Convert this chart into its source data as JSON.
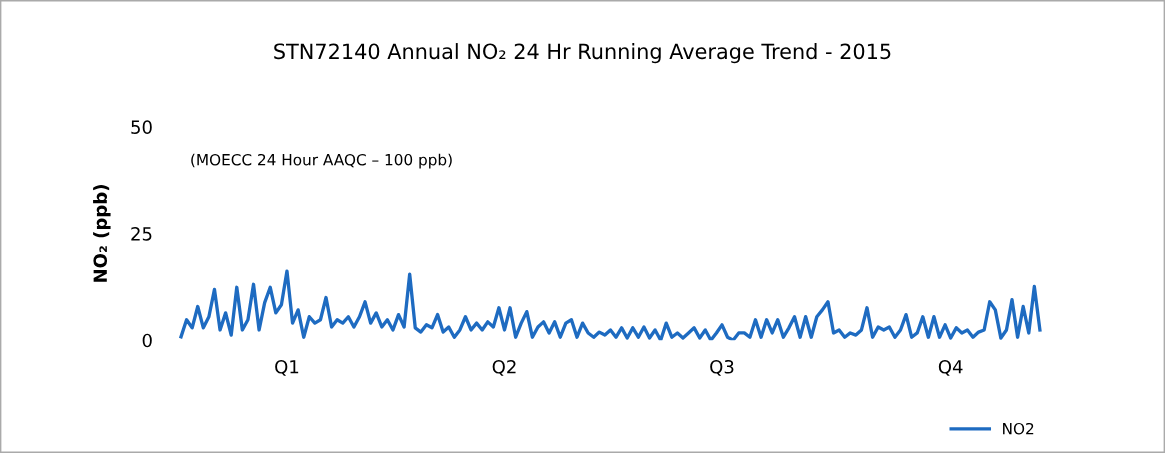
{
  "chart_data": {
    "type": "line",
    "title": "STN72140 Annual NO₂ 24 Hr Running Average Trend - 2015",
    "ylabel": "NO₂ (ppb)",
    "annotations": [
      "(MOECC 24 Hour AAQC – 100 ppb)"
    ],
    "categories": [
      null,
      null,
      null,
      null,
      null,
      null,
      null,
      null,
      null,
      null,
      null,
      null,
      null,
      null,
      null,
      null,
      null,
      null,
      null,
      "Q1",
      null,
      null,
      null,
      null,
      null,
      null,
      null,
      null,
      null,
      null,
      null,
      null,
      null,
      null,
      null,
      null,
      null,
      null,
      null,
      null,
      null,
      null,
      null,
      null,
      null,
      null,
      null,
      null,
      null,
      null,
      null,
      null,
      null,
      null,
      null,
      null,
      null,
      null,
      "Q2",
      null,
      null,
      null,
      null,
      null,
      null,
      null,
      null,
      null,
      null,
      null,
      null,
      null,
      null,
      null,
      null,
      null,
      null,
      null,
      null,
      null,
      null,
      null,
      null,
      null,
      null,
      null,
      null,
      null,
      null,
      null,
      null,
      null,
      null,
      null,
      null,
      null,
      null,
      "Q3",
      null,
      null,
      null,
      null,
      null,
      null,
      null,
      null,
      null,
      null,
      null,
      null,
      null,
      null,
      null,
      null,
      null,
      null,
      null,
      null,
      null,
      null,
      null,
      null,
      null,
      null,
      null,
      null,
      null,
      null,
      null,
      null,
      null,
      null,
      null,
      null,
      null,
      null,
      null,
      null,
      "Q4",
      null,
      null,
      null,
      null,
      null,
      null,
      null,
      null,
      null,
      null,
      null,
      null,
      null,
      null,
      null,
      null
    ],
    "series": [
      {
        "name": "NO2",
        "color": "#1e6bc1",
        "values": [
          0.8,
          4.8,
          2.9,
          7.9,
          2.9,
          5.5,
          11.9,
          2.4,
          6.4,
          1.2,
          12.4,
          2.4,
          4.8,
          13.1,
          2.4,
          8.8,
          12.4,
          6.4,
          8.3,
          16.2,
          4.0,
          7.1,
          0.7,
          5.5,
          4.0,
          4.8,
          10.0,
          3.1,
          4.8,
          4.0,
          5.5,
          3.1,
          5.5,
          9.0,
          4.0,
          6.4,
          3.1,
          4.8,
          2.4,
          6.0,
          3.1,
          15.5,
          2.9,
          1.9,
          3.6,
          2.9,
          6.0,
          1.9,
          3.1,
          0.7,
          2.4,
          5.5,
          2.4,
          4.0,
          2.4,
          4.3,
          3.1,
          7.6,
          2.4,
          7.6,
          0.7,
          4.0,
          6.7,
          0.7,
          3.1,
          4.3,
          1.7,
          4.3,
          0.7,
          4.0,
          4.8,
          0.7,
          4.0,
          1.7,
          0.7,
          1.9,
          1.2,
          2.4,
          0.7,
          2.9,
          0.5,
          2.9,
          0.7,
          3.1,
          0.5,
          2.4,
          0,
          4.0,
          0.7,
          1.7,
          0.5,
          1.7,
          2.9,
          0.5,
          2.4,
          0,
          1.7,
          3.6,
          0.7,
          0,
          1.7,
          1.7,
          0.7,
          4.8,
          0.7,
          4.8,
          1.7,
          4.8,
          0.7,
          2.9,
          5.5,
          0.7,
          5.5,
          0.7,
          5.5,
          7.1,
          9.0,
          1.7,
          2.4,
          0.7,
          1.7,
          1.2,
          2.4,
          7.6,
          0.7,
          3.1,
          2.4,
          3.1,
          0.7,
          2.4,
          6.0,
          0.7,
          1.7,
          5.5,
          0.7,
          5.5,
          0.7,
          3.6,
          0.5,
          2.9,
          1.7,
          2.4,
          0.7,
          1.9,
          2.4,
          9.0,
          7.1,
          0.5,
          2.4,
          9.5,
          0.7,
          7.9,
          1.7,
          12.6,
          2.4
        ]
      }
    ],
    "ylim": [
      0,
      50
    ],
    "yticks": [
      0,
      25,
      50
    ],
    "grid": false,
    "legend": "bottom right",
    "line_style": "solid",
    "marker": "none"
  }
}
